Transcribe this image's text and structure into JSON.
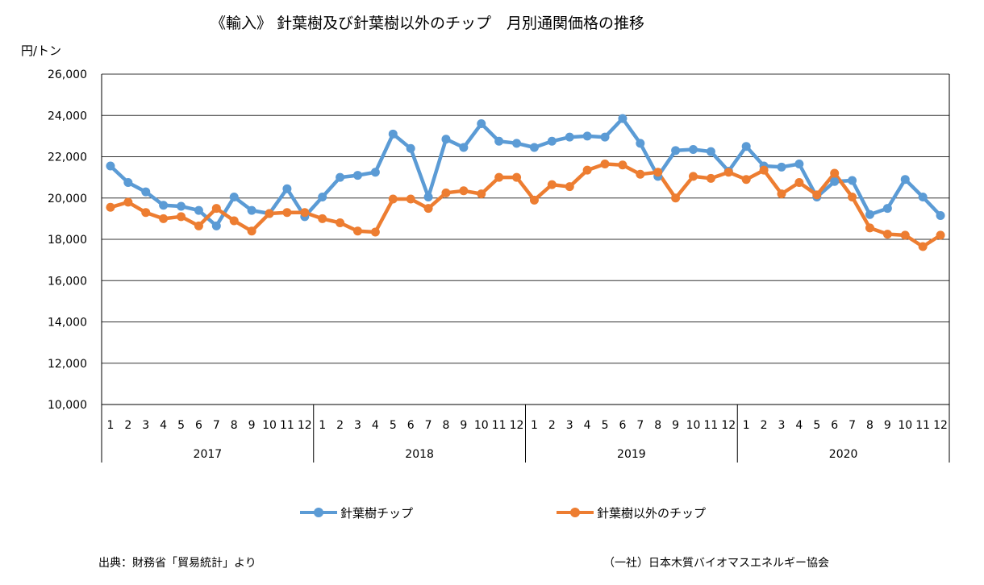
{
  "title": "《輸入》 針葉樹及び針葉樹以外のチップ　月別通関価格の推移",
  "source_note": "出典：財務省「貿易統計」より",
  "credit": "（一社）日本木質バイオマスエネルギー協会",
  "chart_data": {
    "type": "line",
    "title": "《輸入》 針葉樹及び針葉樹以外のチップ　月別通関価格の推移",
    "ylabel": "円/トン",
    "ylim": [
      10000,
      26000
    ],
    "yticks": [
      "10,000",
      "12,000",
      "14,000",
      "16,000",
      "18,000",
      "20,000",
      "22,000",
      "24,000",
      "26,000"
    ],
    "grid": true,
    "legend_position": "bottom",
    "x_months": [
      "1",
      "2",
      "3",
      "4",
      "5",
      "6",
      "7",
      "8",
      "9",
      "10",
      "11",
      "12",
      "1",
      "2",
      "3",
      "4",
      "5",
      "6",
      "7",
      "8",
      "9",
      "10",
      "11",
      "12",
      "1",
      "2",
      "3",
      "4",
      "5",
      "6",
      "7",
      "8",
      "9",
      "10",
      "11",
      "12",
      "1",
      "2",
      "3",
      "4",
      "5",
      "6",
      "7",
      "8",
      "9",
      "10",
      "11",
      "12"
    ],
    "years": [
      "2017",
      "2018",
      "2019",
      "2020"
    ],
    "series": [
      {
        "name": "針葉樹チップ",
        "color": "#5b9bd5",
        "values": [
          21550,
          20750,
          20300,
          19650,
          19600,
          19400,
          18650,
          20050,
          19400,
          19250,
          20450,
          19100,
          20050,
          21000,
          21100,
          21250,
          23100,
          22400,
          20050,
          22850,
          22450,
          23600,
          22750,
          22650,
          22450,
          22750,
          22950,
          23000,
          22950,
          23850,
          22650,
          21050,
          22300,
          22350,
          22250,
          21300,
          22500,
          21550,
          21500,
          21650,
          20050,
          20800,
          20850,
          19200,
          19500,
          20900,
          20050,
          19150
        ]
      },
      {
        "name": "針葉樹以外のチップ",
        "color": "#ed7d31",
        "values": [
          19550,
          19800,
          19300,
          19000,
          19100,
          18650,
          19500,
          18900,
          18400,
          19250,
          19300,
          19300,
          19000,
          18800,
          18400,
          18350,
          19950,
          19950,
          19500,
          20250,
          20350,
          20200,
          21000,
          21000,
          19900,
          20650,
          20550,
          21350,
          21650,
          21600,
          21150,
          21250,
          20000,
          21050,
          20950,
          21250,
          20900,
          21350,
          20200,
          20750,
          20150,
          21200,
          20050,
          18550,
          18250,
          18200,
          17650,
          18200
        ]
      }
    ]
  }
}
